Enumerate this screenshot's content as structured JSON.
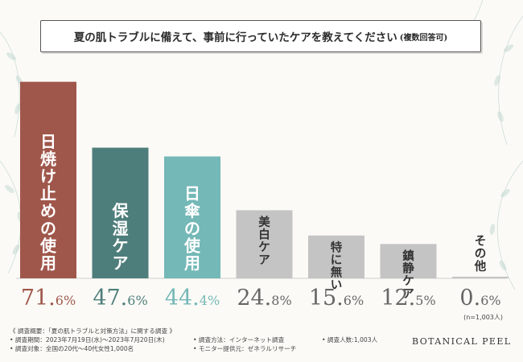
{
  "title": {
    "main": "夏の肌トラブルに備えて、事前に行っていたケアを教えてください",
    "note": "(複数回答可)"
  },
  "chart_data": {
    "type": "bar",
    "title": "夏の肌トラブルに備えて、事前に行っていたケアを教えてください(複数回答可)",
    "categories": [
      "日焼け止めの使用",
      "保湿ケア",
      "日傘の使用",
      "美白ケア",
      "特に無い",
      "鎮静ケア",
      "その他"
    ],
    "values": [
      71.6,
      47.6,
      44.4,
      24.8,
      15.6,
      12.5,
      0.6
    ],
    "value_labels": [
      {
        "int": "71.",
        "dec": "6%"
      },
      {
        "int": "47.",
        "dec": "6%"
      },
      {
        "int": "44.",
        "dec": "4%"
      },
      {
        "int": "24.",
        "dec": "8%"
      },
      {
        "int": "15.",
        "dec": "6%"
      },
      {
        "int": "12.",
        "dec": "5%"
      },
      {
        "int": "0.",
        "dec": "6%"
      }
    ],
    "colors": [
      "#a0574b",
      "#4e7e7b",
      "#74b8b7",
      "#c4c4c4",
      "#c4c4c4",
      "#c4c4c4",
      "#c4c4c4"
    ],
    "label_colors": [
      "#a0574b",
      "#4e7e7b",
      "#74b8b7",
      "#666666",
      "#666666",
      "#666666",
      "#666666"
    ],
    "inbar_text_colors": [
      "#ffffff",
      "#ffffff",
      "#ffffff",
      "#333333",
      "#333333",
      "#333333",
      "#333333"
    ],
    "ylim": [
      0,
      80
    ],
    "grid": false,
    "sample_note": "(n=1,003人)"
  },
  "notes": {
    "col1": [
      "《 調査概要：「夏の肌トラブルと対策方法」に関する調査 》",
      "• 調査期間：2023年7月19日(水)〜2023年7月20日(木)",
      "• 調査対象：全国の20代〜40代女性1,000名"
    ],
    "col2": [
      "• 調査方法：インターネット調査",
      "• モニター提供元：ゼネラルリサーチ"
    ],
    "col3": [
      "• 調査人数:1,003人"
    ]
  },
  "brand": "BOTANICAL PEEL"
}
